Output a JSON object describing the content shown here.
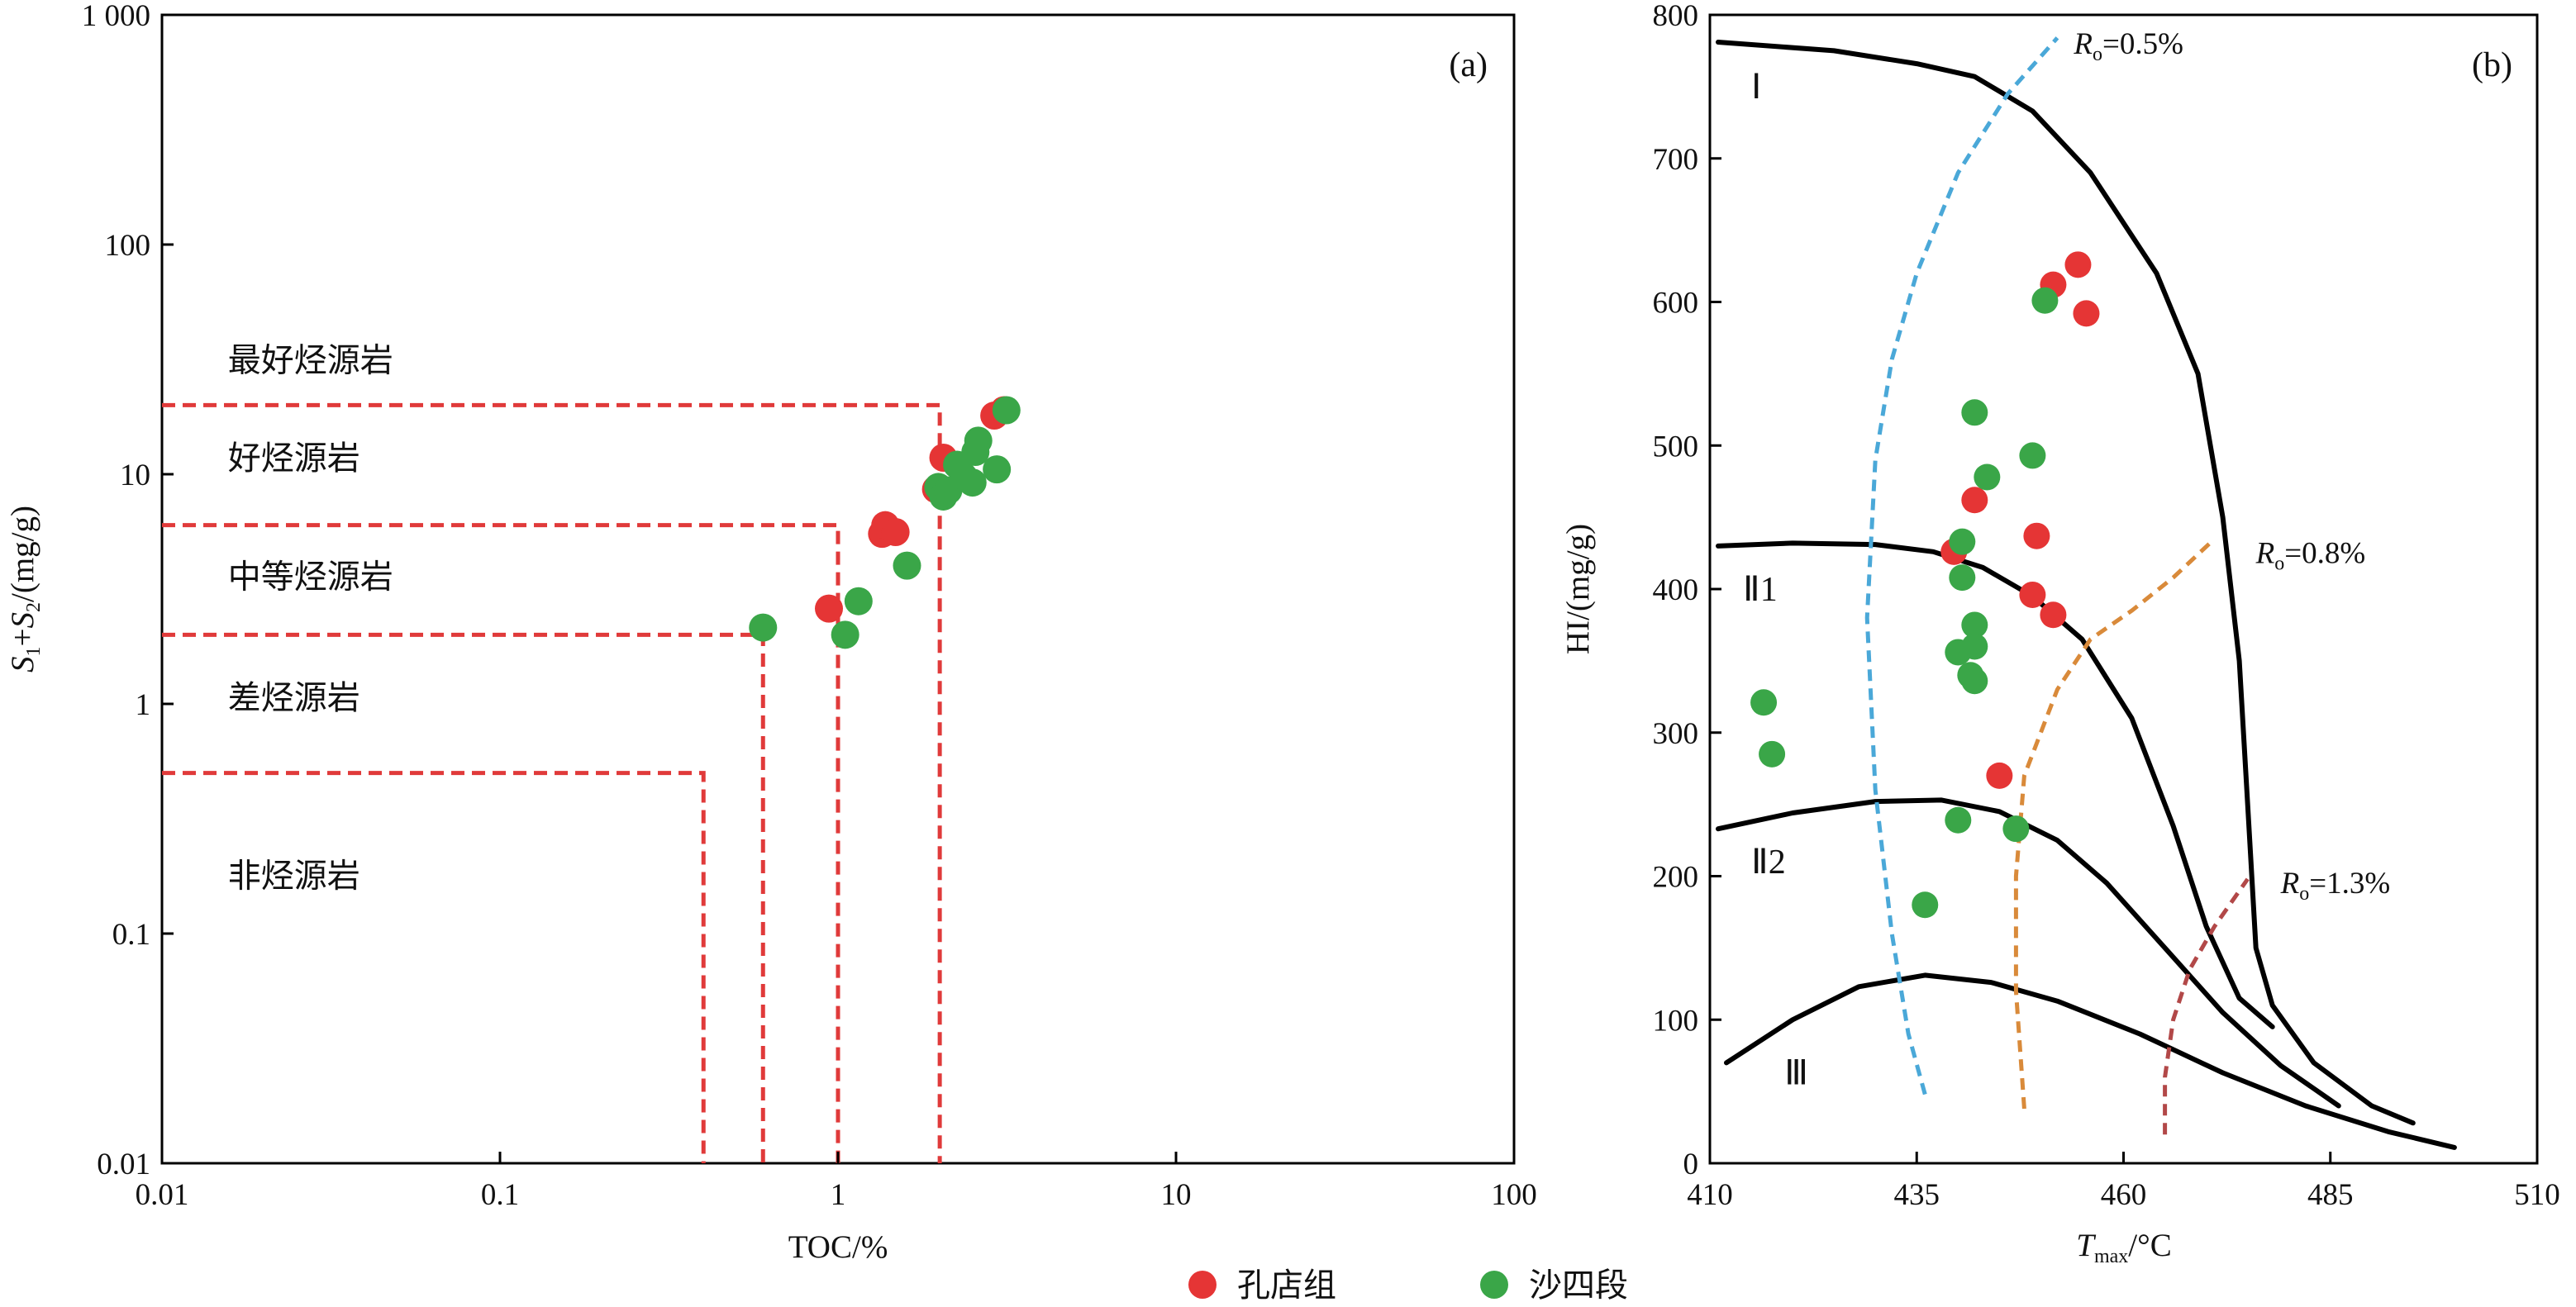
{
  "chart_data": [
    {
      "type": "scatter",
      "panel_label": "(a)",
      "xlabel": "TOC/%",
      "ylabel": "S1+S2/(mg/g)",
      "ylabel_parts": {
        "s1": "S",
        "sub1": "1",
        "plus": "+",
        "s2": "S",
        "sub2": "2",
        "unit": "/(mg/g)"
      },
      "xscale": "log",
      "yscale": "log",
      "xlim": [
        0.01,
        100
      ],
      "ylim": [
        0.01,
        1000
      ],
      "xticks": [
        {
          "v": 0.01,
          "label": "0.01"
        },
        {
          "v": 0.1,
          "label": "0.1"
        },
        {
          "v": 1,
          "label": "1"
        },
        {
          "v": 10,
          "label": "10"
        },
        {
          "v": 100,
          "label": "100"
        }
      ],
      "yticks": [
        {
          "v": 0.01,
          "label": "0.01"
        },
        {
          "v": 0.1,
          "label": "0.1"
        },
        {
          "v": 1,
          "label": "1"
        },
        {
          "v": 10,
          "label": "10"
        },
        {
          "v": 100,
          "label": "100"
        },
        {
          "v": 1000,
          "label": "1 000"
        }
      ],
      "zones": [
        {
          "label": "最好烃源岩",
          "x": 0.014,
          "y": 28
        },
        {
          "label": "好烃源岩",
          "x": 0.014,
          "y": 10.5
        },
        {
          "label": "中等烃源岩",
          "x": 0.014,
          "y": 3.2
        },
        {
          "label": "差烃源岩",
          "x": 0.014,
          "y": 0.95
        },
        {
          "label": "非烃源岩",
          "x": 0.014,
          "y": 0.16
        }
      ],
      "thresholds": [
        {
          "x": 2,
          "y": 20
        },
        {
          "x": 1,
          "y": 6
        },
        {
          "x": 0.6,
          "y": 2
        },
        {
          "x": 0.4,
          "y": 0.5
        }
      ],
      "threshold_color": "#e03a3a",
      "series": [
        {
          "name": "孔店组",
          "color": "#e53535",
          "points": [
            [
              0.94,
              2.6
            ],
            [
              1.35,
              5.5
            ],
            [
              1.38,
              6.0
            ],
            [
              1.48,
              5.6
            ],
            [
              1.95,
              8.6
            ],
            [
              2.05,
              11.8
            ],
            [
              2.9,
              18.0
            ],
            [
              3.1,
              19.0
            ]
          ]
        },
        {
          "name": "沙四段",
          "color": "#3aa648",
          "points": [
            [
              0.6,
              2.15
            ],
            [
              1.05,
              2.0
            ],
            [
              1.15,
              2.8
            ],
            [
              1.6,
              4.0
            ],
            [
              1.98,
              8.8
            ],
            [
              2.05,
              8.0
            ],
            [
              2.12,
              8.5
            ],
            [
              2.25,
              11.0
            ],
            [
              2.35,
              9.8
            ],
            [
              2.5,
              9.2
            ],
            [
              2.55,
              12.5
            ],
            [
              2.6,
              14.0
            ],
            [
              2.95,
              10.5
            ],
            [
              3.15,
              19.0
            ]
          ]
        }
      ]
    },
    {
      "type": "scatter",
      "panel_label": "(b)",
      "xlabel": "Tmax/°C",
      "xlabel_parts": {
        "t": "T",
        "sub": "max",
        "unit": "/°C"
      },
      "ylabel": "HI/(mg/g)",
      "xlim": [
        410,
        510
      ],
      "ylim": [
        0,
        800
      ],
      "xticks": [
        410,
        435,
        460,
        485,
        510
      ],
      "yticks": [
        0,
        100,
        200,
        300,
        400,
        500,
        600,
        700,
        800
      ],
      "type_labels": [
        {
          "label": "Ⅰ",
          "x": 413,
          "y": 750
        },
        {
          "label": "Ⅱ1",
          "x": 412,
          "y": 400
        },
        {
          "label": "Ⅱ2",
          "x": 413,
          "y": 210
        },
        {
          "label": "Ⅲ",
          "x": 417,
          "y": 63
        }
      ],
      "type_curves": [
        {
          "name": "Ⅰ",
          "points": [
            [
              411,
              781
            ],
            [
              425,
              775
            ],
            [
              435,
              766
            ],
            [
              442,
              757
            ],
            [
              449,
              733
            ],
            [
              456,
              690
            ],
            [
              464,
              620
            ],
            [
              469,
              550
            ],
            [
              472,
              450
            ],
            [
              474,
              350
            ],
            [
              475,
              250
            ],
            [
              476,
              150
            ],
            [
              478,
              110
            ],
            [
              483,
              70
            ],
            [
              490,
              40
            ],
            [
              495,
              28
            ]
          ]
        },
        {
          "name": "Ⅱ1",
          "points": [
            [
              411,
              430
            ],
            [
              420,
              432
            ],
            [
              430,
              431
            ],
            [
              437,
              426
            ],
            [
              443,
              415
            ],
            [
              449,
              395
            ],
            [
              455,
              365
            ],
            [
              461,
              310
            ],
            [
              466,
              235
            ],
            [
              470,
              165
            ],
            [
              474,
              115
            ],
            [
              478,
              95
            ]
          ]
        },
        {
          "name": "Ⅱ2",
          "points": [
            [
              411,
              233
            ],
            [
              420,
              244
            ],
            [
              430,
              252
            ],
            [
              438,
              253
            ],
            [
              445,
              245
            ],
            [
              452,
              225
            ],
            [
              458,
              195
            ],
            [
              465,
              150
            ],
            [
              472,
              105
            ],
            [
              479,
              68
            ],
            [
              486,
              40
            ]
          ]
        },
        {
          "name": "Ⅲ",
          "points": [
            [
              412,
              70
            ],
            [
              420,
              100
            ],
            [
              428,
              123
            ],
            [
              436,
              131
            ],
            [
              444,
              126
            ],
            [
              452,
              113
            ],
            [
              462,
              90
            ],
            [
              472,
              63
            ],
            [
              482,
              40
            ],
            [
              492,
              22
            ],
            [
              500,
              11
            ]
          ]
        }
      ],
      "ro_curves": [
        {
          "label": "Ro=0.5%",
          "parts": {
            "r": "R",
            "sub": "o",
            "rest": "=0.5%"
          },
          "color": "#4aa8d8",
          "label_at": [
            452,
            780
          ],
          "points": [
            [
              436,
              48
            ],
            [
              434,
              90
            ],
            [
              432,
              160
            ],
            [
              430,
              260
            ],
            [
              429,
              380
            ],
            [
              430,
              490
            ],
            [
              432,
              560
            ],
            [
              435,
              620
            ],
            [
              440,
              690
            ],
            [
              446,
              745
            ],
            [
              452,
              784
            ]
          ]
        },
        {
          "label": "Ro=0.8%",
          "parts": {
            "r": "R",
            "sub": "o",
            "rest": "=0.8%"
          },
          "color": "#d98a3a",
          "label_at": [
            474,
            425
          ],
          "points": [
            [
              448,
              38
            ],
            [
              447,
              120
            ],
            [
              447,
              200
            ],
            [
              448,
              270
            ],
            [
              452,
              330
            ],
            [
              456,
              365
            ],
            [
              461,
              385
            ],
            [
              466,
              408
            ],
            [
              471,
              435
            ]
          ]
        },
        {
          "label": "Ro=1.3%",
          "parts": {
            "r": "R",
            "sub": "o",
            "rest": "=1.3%"
          },
          "color": "#b24848",
          "label_at": [
            477,
            195
          ],
          "points": [
            [
              465,
              20
            ],
            [
              465,
              60
            ],
            [
              466,
              100
            ],
            [
              468,
              135
            ],
            [
              471,
              165
            ],
            [
              475,
              198
            ]
          ]
        }
      ],
      "series": [
        {
          "name": "孔店组",
          "color": "#e53535",
          "points": [
            [
              451.5,
              612
            ],
            [
              454.5,
              626
            ],
            [
              455.5,
              592
            ],
            [
              442.0,
              462
            ],
            [
              449.5,
              437
            ],
            [
              439.5,
              426
            ],
            [
              449.0,
              396
            ],
            [
              451.5,
              382
            ],
            [
              445.0,
              270
            ]
          ]
        },
        {
          "name": "沙四段",
          "color": "#3aa648",
          "points": [
            [
              450.5,
              601
            ],
            [
              442.0,
              523
            ],
            [
              449.0,
              493
            ],
            [
              443.5,
              478
            ],
            [
              440.5,
              433
            ],
            [
              440.5,
              408
            ],
            [
              442.0,
              375
            ],
            [
              442.0,
              360
            ],
            [
              440.0,
              356
            ],
            [
              441.5,
              340
            ],
            [
              442.0,
              336
            ],
            [
              416.5,
              321
            ],
            [
              417.5,
              285
            ],
            [
              440.0,
              239
            ],
            [
              447.0,
              233
            ],
            [
              436.0,
              180
            ]
          ]
        }
      ]
    }
  ],
  "legend": [
    {
      "label": "孔店组",
      "color": "#e53535"
    },
    {
      "label": "沙四段",
      "color": "#3aa648"
    }
  ]
}
